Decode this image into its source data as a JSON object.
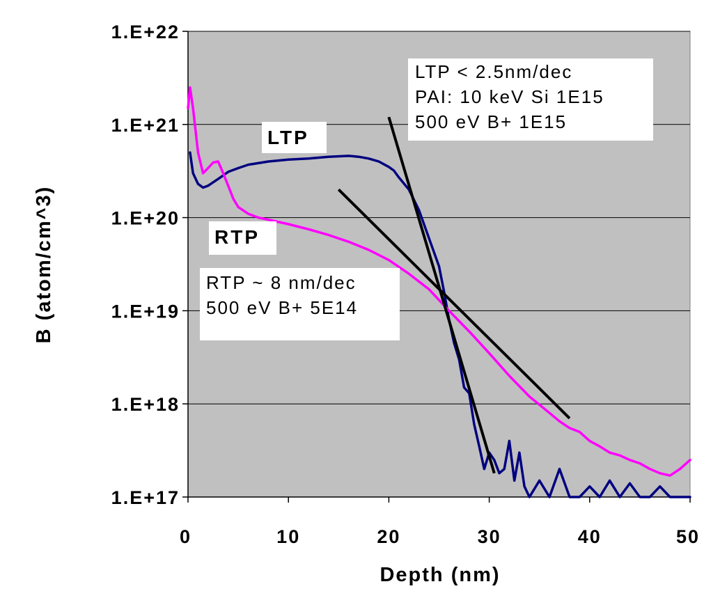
{
  "chart_data": {
    "type": "line",
    "xlabel": "Depth (nm)",
    "ylabel": "B (atom/cm^3)",
    "xlim": [
      0,
      50
    ],
    "ylim": [
      1e+17,
      1e+22
    ],
    "yscale": "log",
    "grid": "horizontal",
    "x_tick_labels": [
      "0",
      "10",
      "20",
      "30",
      "40",
      "50"
    ],
    "y_tick_labels": [
      "1.E+17",
      "1.E+18",
      "1.E+19",
      "1.E+20",
      "1.E+21",
      "1.E+22"
    ],
    "background_color": "#c0c0c0",
    "series": [
      {
        "name": "LTP",
        "color": "#000080",
        "x": [
          0.2,
          0.5,
          1,
          1.5,
          2,
          3,
          4,
          5,
          6,
          8,
          10,
          12,
          14,
          16,
          17,
          18,
          19,
          20,
          20.5,
          21,
          22,
          23,
          24,
          25,
          25.5,
          26,
          26.5,
          27,
          27.5,
          28,
          28.5,
          29,
          29.5,
          30,
          30.5,
          31,
          31.5,
          32,
          32.5,
          33,
          33.5,
          34,
          35,
          36,
          37,
          38,
          39,
          40,
          41,
          42,
          43,
          44,
          45,
          46,
          47,
          48,
          49,
          50
        ],
        "y": [
          5e+20,
          3e+20,
          2.3e+20,
          2.1e+20,
          2.2e+20,
          2.6e+20,
          3.1e+20,
          3.4e+20,
          3.7e+20,
          4e+20,
          4.2e+20,
          4.3e+20,
          4.5e+20,
          4.6e+20,
          4.5e+20,
          4.3e+20,
          4e+20,
          3.5e+20,
          3.2e+20,
          2.7e+20,
          2e+20,
          1.2e+20,
          6e+19,
          3e+19,
          1.6e+19,
          8e+18,
          4.5e+18,
          3e+18,
          1.5e+18,
          1.3e+18,
          6e+17,
          3.5e+17,
          2e+17,
          3e+17,
          2.5e+17,
          1.8e+17,
          2e+17,
          4e+17,
          1.5e+17,
          3e+17,
          1.3e+17,
          1e+17,
          1.5e+17,
          1e+17,
          2e+17,
          1e+17,
          1e+17,
          1.3e+17,
          1e+17,
          1.5e+17,
          1e+17,
          1.4e+17,
          1e+17,
          1e+17,
          1.3e+17,
          1e+17,
          1e+17,
          1e+17
        ]
      },
      {
        "name": "RTP",
        "color": "#ff00ff",
        "x": [
          0,
          0.2,
          0.5,
          1,
          1.5,
          2,
          2.5,
          3,
          3.5,
          4,
          4.5,
          5,
          6,
          7,
          8,
          10,
          12,
          14,
          16,
          18,
          20,
          22,
          24,
          26,
          28,
          30,
          32,
          34,
          36,
          37,
          38,
          39,
          40,
          41,
          42,
          43,
          44,
          45,
          46,
          47,
          48,
          49,
          50
        ],
        "y": [
          1.5e+21,
          2.5e+21,
          1.5e+21,
          5e+20,
          3e+20,
          3.4e+20,
          3.9e+20,
          4e+20,
          3e+20,
          2.2e+20,
          1.6e+20,
          1.3e+20,
          1.1e+20,
          1e+20,
          9.5e+19,
          8.5e+19,
          7.5e+19,
          6.5e+19,
          5.5e+19,
          4.5e+19,
          3.5e+19,
          2.5e+19,
          1.7e+19,
          1e+19,
          6e+18,
          3.5e+18,
          2e+18,
          1.2e+18,
          8e+17,
          6.5e+17,
          5.5e+17,
          5e+17,
          4e+17,
          3.5e+17,
          3e+17,
          2.8e+17,
          2.5e+17,
          2.3e+17,
          2e+17,
          1.8e+17,
          1.7e+17,
          2e+17,
          2.5e+17
        ]
      }
    ],
    "fit_lines": [
      {
        "x": [
          20,
          30.5
        ],
        "y": [
          1.2e+21,
          1.8e+17
        ],
        "color": "#000000"
      },
      {
        "x": [
          15,
          38
        ],
        "y": [
          2e+20,
          7e+17
        ],
        "color": "#000000"
      }
    ],
    "annotations": {
      "ltp_label": "LTP",
      "rtp_label": "RTP",
      "ltp_note": [
        "LTP < 2.5nm/dec",
        "PAI: 10 keV Si 1E15",
        "500 eV B+ 1E15"
      ],
      "rtp_note": [
        "RTP ~ 8 nm/dec",
        "500 eV B+ 5E14"
      ]
    }
  }
}
